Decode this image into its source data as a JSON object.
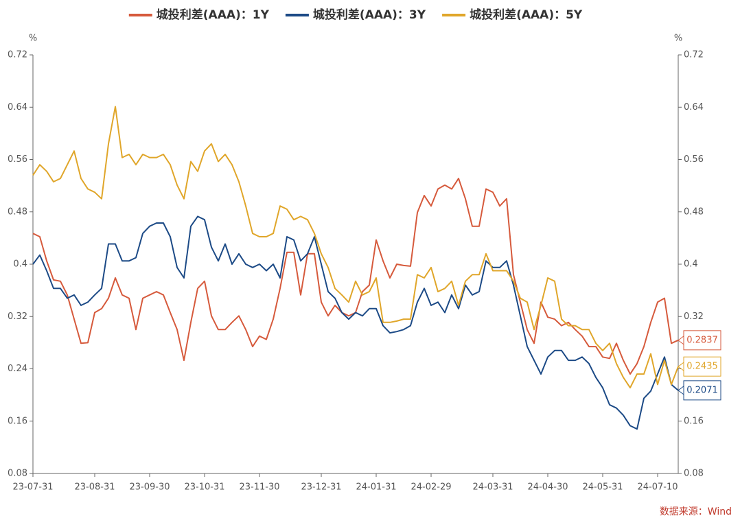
{
  "chart_data": {
    "type": "line",
    "y_unit": "%",
    "y2_unit": "%",
    "source": "数据来源：Wind",
    "categories": [
      "23-07-31",
      null,
      null,
      null,
      null,
      null,
      null,
      null,
      null,
      "23-08-31",
      null,
      null,
      null,
      null,
      null,
      null,
      null,
      "23-09-30",
      null,
      null,
      null,
      null,
      null,
      null,
      null,
      "23-10-31",
      null,
      null,
      null,
      null,
      null,
      null,
      null,
      "23-11-30",
      null,
      null,
      null,
      null,
      null,
      null,
      null,
      null,
      "23-12-31",
      null,
      null,
      null,
      null,
      null,
      null,
      null,
      "24-01-31",
      null,
      null,
      null,
      null,
      null,
      null,
      null,
      "24-02-29",
      null,
      null,
      null,
      null,
      null,
      null,
      null,
      null,
      "24-03-31",
      null,
      null,
      null,
      null,
      null,
      null,
      null,
      "24-04-30",
      null,
      null,
      null,
      null,
      null,
      null,
      null,
      "24-05-31",
      null,
      null,
      null,
      null,
      null,
      null,
      null,
      "24-07-10",
      null,
      null,
      null
    ],
    "series": [
      {
        "name": "城投利差(AAA)：1Y",
        "color": "#d65a3c",
        "values": [
          0.447,
          0.442,
          0.405,
          0.376,
          0.374,
          0.353,
          0.316,
          0.279,
          0.28,
          0.326,
          0.332,
          0.348,
          0.379,
          0.353,
          0.348,
          0.3,
          0.348,
          0.353,
          0.358,
          0.353,
          0.326,
          0.3,
          0.253,
          0.311,
          0.363,
          0.374,
          0.321,
          0.3,
          0.3,
          0.311,
          0.321,
          0.3,
          0.274,
          0.29,
          0.285,
          0.316,
          0.363,
          0.418,
          0.418,
          0.353,
          0.416,
          0.416,
          0.342,
          0.321,
          0.337,
          0.326,
          0.321,
          0.326,
          0.358,
          0.368,
          0.437,
          0.405,
          0.379,
          0.4,
          0.398,
          0.397,
          0.479,
          0.505,
          0.489,
          0.515,
          0.521,
          0.515,
          0.531,
          0.5,
          0.458,
          0.458,
          0.515,
          0.51,
          0.489,
          0.5,
          0.384,
          0.342,
          0.3,
          0.279,
          0.342,
          0.319,
          0.316,
          0.306,
          0.311,
          0.3,
          0.29,
          0.274,
          0.274,
          0.258,
          0.256,
          0.279,
          0.253,
          0.232,
          0.248,
          0.274,
          0.311,
          0.342,
          0.348,
          0.279,
          0.2837
        ]
      },
      {
        "name": "城投利差(AAA)：3Y",
        "color": "#1c4a86",
        "values": [
          0.4,
          0.414,
          0.39,
          0.363,
          0.363,
          0.348,
          0.353,
          0.337,
          0.342,
          0.353,
          0.363,
          0.431,
          0.431,
          0.405,
          0.405,
          0.41,
          0.447,
          0.458,
          0.463,
          0.463,
          0.442,
          0.395,
          0.379,
          0.458,
          0.473,
          0.468,
          0.426,
          0.405,
          0.431,
          0.4,
          0.416,
          0.4,
          0.395,
          0.4,
          0.39,
          0.4,
          0.379,
          0.442,
          0.437,
          0.405,
          0.416,
          0.442,
          0.4,
          0.358,
          0.348,
          0.326,
          0.316,
          0.326,
          0.321,
          0.332,
          0.332,
          0.306,
          0.295,
          0.297,
          0.3,
          0.306,
          0.342,
          0.363,
          0.337,
          0.342,
          0.326,
          0.353,
          0.332,
          0.368,
          0.353,
          0.358,
          0.405,
          0.395,
          0.395,
          0.405,
          0.368,
          0.321,
          0.274,
          0.253,
          0.232,
          0.258,
          0.268,
          0.268,
          0.253,
          0.253,
          0.258,
          0.248,
          0.227,
          0.211,
          0.185,
          0.18,
          0.169,
          0.153,
          0.148,
          0.195,
          0.206,
          0.232,
          0.258,
          0.216,
          0.2071
        ]
      },
      {
        "name": "城投利差(AAA)：5Y",
        "color": "#e0a62a",
        "values": [
          0.536,
          0.552,
          0.542,
          0.526,
          0.531,
          0.552,
          0.573,
          0.531,
          0.515,
          0.51,
          0.5,
          0.584,
          0.641,
          0.563,
          0.568,
          0.552,
          0.568,
          0.563,
          0.563,
          0.568,
          0.552,
          0.521,
          0.5,
          0.557,
          0.542,
          0.573,
          0.584,
          0.557,
          0.568,
          0.552,
          0.526,
          0.489,
          0.447,
          0.442,
          0.442,
          0.447,
          0.489,
          0.484,
          0.468,
          0.473,
          0.468,
          0.447,
          0.416,
          0.395,
          0.363,
          0.353,
          0.342,
          0.374,
          0.353,
          0.358,
          0.379,
          0.311,
          0.311,
          0.313,
          0.316,
          0.316,
          0.384,
          0.379,
          0.395,
          0.358,
          0.363,
          0.374,
          0.337,
          0.374,
          0.384,
          0.384,
          0.416,
          0.39,
          0.39,
          0.39,
          0.374,
          0.348,
          0.342,
          0.3,
          0.337,
          0.379,
          0.374,
          0.316,
          0.306,
          0.306,
          0.3,
          0.3,
          0.279,
          0.268,
          0.279,
          0.248,
          0.227,
          0.211,
          0.232,
          0.232,
          0.263,
          0.216,
          0.253,
          0.216,
          0.2435
        ]
      }
    ],
    "ylim": [
      0.08,
      0.72
    ],
    "yticks": [
      0.08,
      0.16,
      0.24,
      0.32,
      0.4,
      0.48,
      0.56,
      0.64,
      0.72
    ],
    "y2lim": [
      0.08,
      0.72
    ],
    "y2ticks": [
      0.08,
      0.16,
      0.24,
      0.32,
      0.4,
      0.48,
      0.56,
      0.64,
      0.72
    ],
    "legend": "top"
  }
}
